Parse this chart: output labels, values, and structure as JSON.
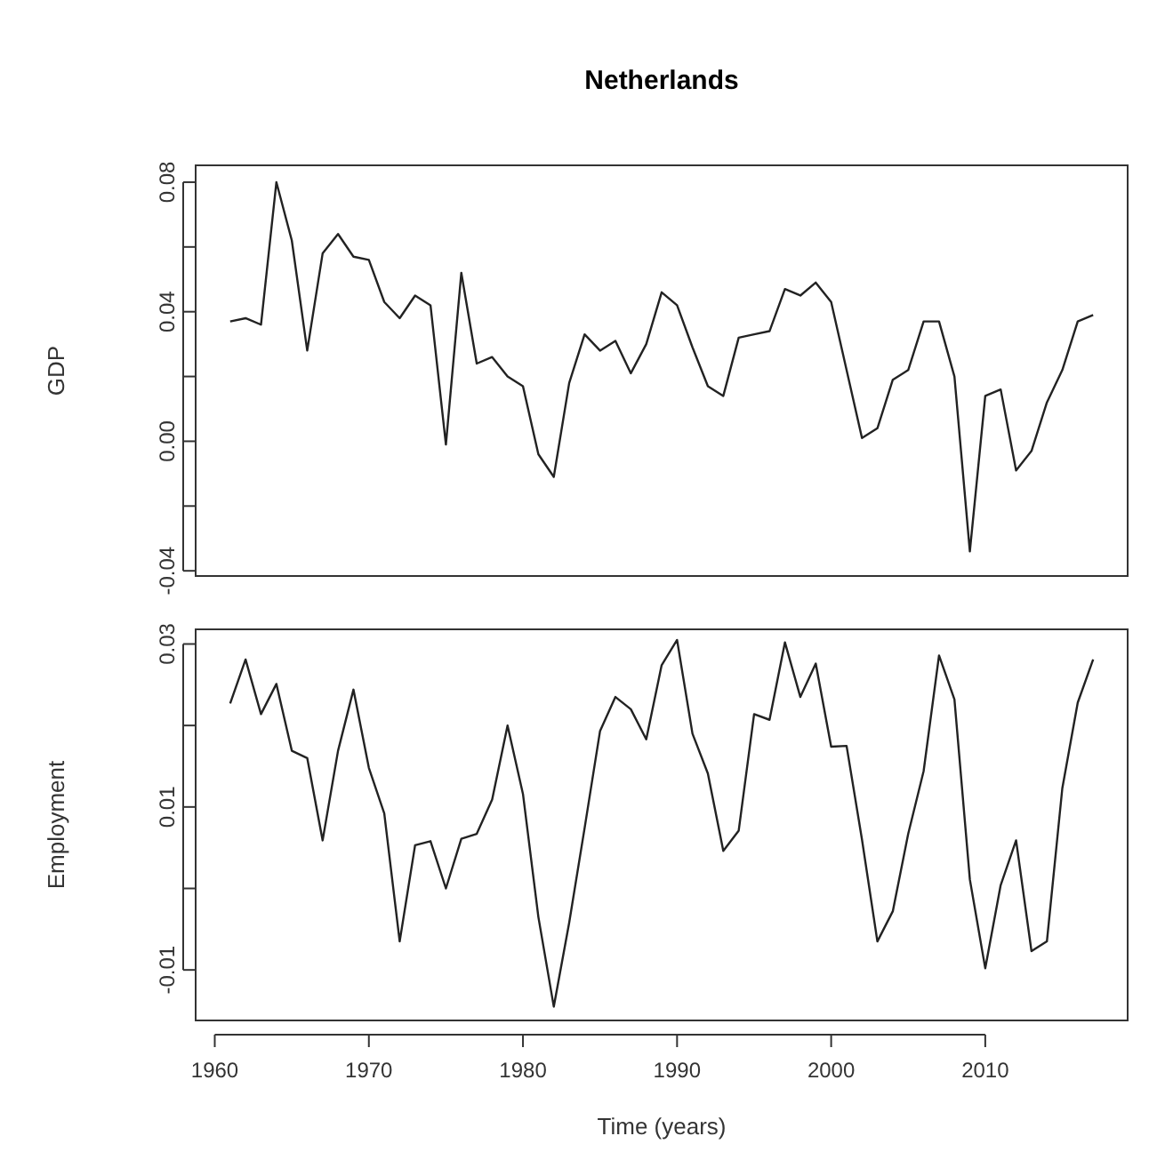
{
  "chart_data": [
    {
      "type": "line",
      "title": "Netherlands",
      "ylabel": "GDP",
      "x": [
        1961,
        1962,
        1963,
        1964,
        1965,
        1966,
        1967,
        1968,
        1969,
        1970,
        1971,
        1972,
        1973,
        1974,
        1975,
        1976,
        1977,
        1978,
        1979,
        1980,
        1981,
        1982,
        1983,
        1984,
        1985,
        1986,
        1987,
        1988,
        1989,
        1990,
        1991,
        1992,
        1993,
        1994,
        1995,
        1996,
        1997,
        1998,
        1999,
        2000,
        2001,
        2002,
        2003,
        2004,
        2005,
        2006,
        2007,
        2008,
        2009,
        2010,
        2011,
        2012,
        2013,
        2014,
        2015,
        2016,
        2017
      ],
      "series": [
        {
          "color": "#222222",
          "values": [
            0.037,
            0.038,
            0.036,
            0.08,
            0.062,
            0.028,
            0.058,
            0.064,
            0.057,
            0.056,
            0.043,
            0.038,
            0.045,
            0.042,
            -0.001,
            0.052,
            0.024,
            0.026,
            0.02,
            0.017,
            -0.004,
            -0.011,
            0.018,
            0.033,
            0.028,
            0.031,
            0.021,
            0.03,
            0.046,
            0.042,
            0.029,
            0.017,
            0.014,
            0.032,
            0.033,
            0.034,
            0.047,
            0.045,
            0.049,
            0.043,
            0.022,
            0.001,
            0.004,
            0.019,
            0.022,
            0.037,
            0.037,
            0.02,
            -0.034,
            0.014,
            0.016,
            -0.009,
            -0.003,
            0.012,
            0.022,
            0.037,
            0.039
          ]
        }
      ],
      "xlim": [
        1958.76,
        2019.24
      ],
      "ylim": [
        -0.0416,
        0.0852
      ],
      "yticks": [
        0.08,
        {
          "value": 0.06,
          "label": null
        },
        0.04,
        {
          "value": 0.02,
          "label": null
        },
        {
          "value": 0,
          "label": "0.00"
        },
        {
          "value": -0.02,
          "label": null
        },
        -0.04
      ],
      "tick_labels": "y"
    },
    {
      "type": "line",
      "ylabel": "Employment",
      "xlabel": "Time (years)",
      "x": [
        1961,
        1962,
        1963,
        1964,
        1965,
        1966,
        1967,
        1968,
        1969,
        1970,
        1971,
        1972,
        1973,
        1974,
        1975,
        1976,
        1977,
        1978,
        1979,
        1980,
        1981,
        1982,
        1983,
        1984,
        1985,
        1986,
        1987,
        1988,
        1989,
        1990,
        1991,
        1992,
        1993,
        1994,
        1995,
        1996,
        1997,
        1998,
        1999,
        2000,
        2001,
        2002,
        2003,
        2004,
        2005,
        2006,
        2007,
        2008,
        2009,
        2010,
        2011,
        2012,
        2013,
        2014,
        2015,
        2016,
        2017
      ],
      "series": [
        {
          "color": "#222222",
          "values": [
            0.0227,
            0.0281,
            0.0214,
            0.0251,
            0.0169,
            0.016,
            0.0059,
            0.0169,
            0.0244,
            0.0148,
            0.0092,
            -0.0065,
            0.0053,
            0.0058,
            0.0,
            0.0061,
            0.0067,
            0.0109,
            0.02,
            0.0116,
            -0.0035,
            -0.0145,
            -0.0042,
            0.0074,
            0.0193,
            0.0235,
            0.022,
            0.0183,
            0.0274,
            0.0305,
            0.019,
            0.0141,
            0.0046,
            0.0071,
            0.0214,
            0.0207,
            0.0302,
            0.0235,
            0.0276,
            0.0174,
            0.0175,
            0.006,
            -0.0065,
            -0.0028,
            0.0067,
            0.0144,
            0.0286,
            0.0232,
            0.0011,
            -0.0098,
            0.0004,
            0.0059,
            -0.0077,
            -0.0065,
            0.0123,
            0.0228,
            0.0281
          ]
        }
      ],
      "xlim": [
        1958.76,
        2019.24
      ],
      "ylim": [
        -0.0162,
        0.0318
      ],
      "xticks": [
        1960,
        1970,
        1980,
        1990,
        2000,
        2010
      ],
      "yticks": [
        0.03,
        {
          "value": 0.02,
          "label": null
        },
        0.01,
        {
          "value": 0,
          "label": null
        },
        -0.01
      ]
    }
  ]
}
